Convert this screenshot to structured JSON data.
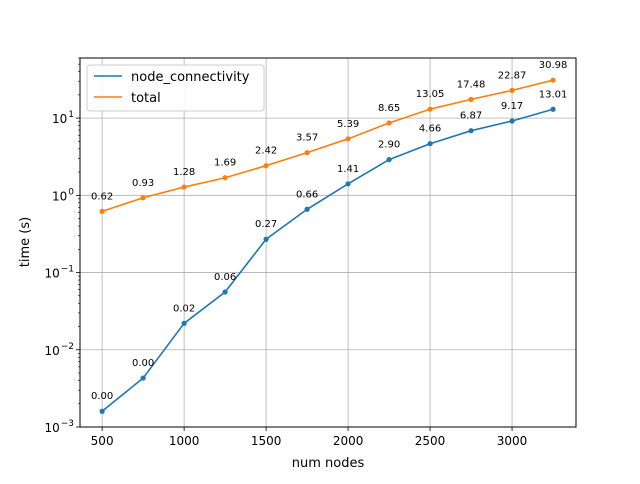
{
  "chart_data": {
    "type": "line",
    "title": "",
    "xlabel": "num nodes",
    "ylabel": "time (s)",
    "xlim": [
      365,
      3390
    ],
    "ylim": [
      0.001,
      60
    ],
    "yscale": "log",
    "grid": true,
    "legend_position": "top-left",
    "x": [
      500,
      750,
      1000,
      1250,
      1500,
      1750,
      2000,
      2250,
      2500,
      2750,
      3000,
      3250
    ],
    "x_ticks": [
      500,
      1000,
      1500,
      2000,
      2500,
      3000
    ],
    "y_ticks": [
      {
        "value": 0.001,
        "base": "10",
        "exp": "−3"
      },
      {
        "value": 0.01,
        "base": "10",
        "exp": "−2"
      },
      {
        "value": 0.1,
        "base": "10",
        "exp": "−1"
      },
      {
        "value": 1,
        "base": "10",
        "exp": "0"
      },
      {
        "value": 10,
        "base": "10",
        "exp": "1"
      }
    ],
    "series": [
      {
        "name": "node_connectivity",
        "color": "#1f77b4",
        "values": [
          0.0016,
          0.0043,
          0.022,
          0.056,
          0.27,
          0.66,
          1.41,
          2.9,
          4.66,
          6.87,
          9.17,
          13.01
        ],
        "labels": [
          "0.00",
          "0.00",
          "0.02",
          "0.06",
          "0.27",
          "0.66",
          "1.41",
          "2.90",
          "4.66",
          "6.87",
          "9.17",
          "13.01"
        ]
      },
      {
        "name": "total",
        "color": "#ff7f0e",
        "values": [
          0.62,
          0.93,
          1.28,
          1.69,
          2.42,
          3.57,
          5.39,
          8.65,
          13.05,
          17.48,
          22.87,
          30.98
        ],
        "labels": [
          "0.62",
          "0.93",
          "1.28",
          "1.69",
          "2.42",
          "3.57",
          "5.39",
          "8.65",
          "13.05",
          "17.48",
          "22.87",
          "30.98"
        ]
      }
    ]
  }
}
